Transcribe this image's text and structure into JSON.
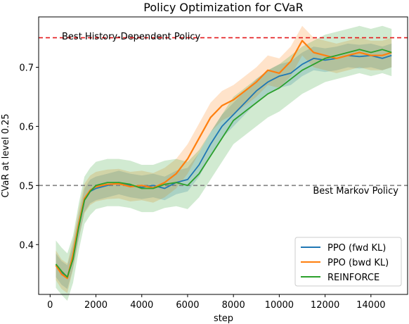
{
  "chart_data": {
    "type": "line",
    "title": "Policy Optimization for CVaR",
    "xlabel": "step",
    "ylabel": "CVaR at level 0.25",
    "xlim": [
      -500,
      15600
    ],
    "ylim": [
      0.3157,
      0.7852
    ],
    "xticks": [
      0,
      2000,
      4000,
      6000,
      8000,
      10000,
      12000,
      14000
    ],
    "yticks": [
      0.4,
      0.5,
      0.6,
      0.7
    ],
    "grid": false,
    "legend_position": "lower-right",
    "reference_lines": [
      {
        "label": "Best History-Dependent Policy",
        "value": 0.75,
        "color": "#e41a1c",
        "style": "dashed",
        "label_position": "left"
      },
      {
        "label": "Best Markov Policy",
        "value": 0.5,
        "color": "#808080",
        "style": "dashed",
        "label_position": "right"
      }
    ],
    "series": [
      {
        "name": "PPO (fwd KL)",
        "color": "#1f77b4",
        "band_width": 0.02,
        "x": [
          250,
          500,
          750,
          1000,
          1250,
          1500,
          1750,
          2000,
          2500,
          3000,
          3500,
          4000,
          4500,
          5000,
          5500,
          6000,
          6500,
          7000,
          7500,
          8000,
          8500,
          9000,
          9500,
          10000,
          10500,
          11000,
          11500,
          12000,
          12500,
          13000,
          13500,
          14000,
          14500,
          14900
        ],
        "y": [
          0.365,
          0.352,
          0.345,
          0.38,
          0.43,
          0.475,
          0.49,
          0.495,
          0.5,
          0.505,
          0.5,
          0.497,
          0.5,
          0.495,
          0.505,
          0.51,
          0.535,
          0.57,
          0.6,
          0.62,
          0.64,
          0.66,
          0.675,
          0.685,
          0.69,
          0.705,
          0.715,
          0.712,
          0.715,
          0.72,
          0.718,
          0.72,
          0.715,
          0.72
        ]
      },
      {
        "name": "PPO (bwd KL)",
        "color": "#ff7f0e",
        "band_width": 0.025,
        "x": [
          250,
          500,
          750,
          1000,
          1250,
          1500,
          1750,
          2000,
          2500,
          3000,
          3500,
          4000,
          4500,
          5000,
          5500,
          6000,
          6500,
          7000,
          7500,
          8000,
          8500,
          9000,
          9500,
          10000,
          10500,
          11000,
          11500,
          12000,
          12500,
          13000,
          13500,
          14000,
          14500,
          14900
        ],
        "y": [
          0.365,
          0.35,
          0.343,
          0.383,
          0.435,
          0.478,
          0.492,
          0.498,
          0.502,
          0.503,
          0.498,
          0.5,
          0.496,
          0.505,
          0.52,
          0.545,
          0.58,
          0.615,
          0.635,
          0.645,
          0.66,
          0.675,
          0.695,
          0.69,
          0.71,
          0.745,
          0.725,
          0.72,
          0.715,
          0.72,
          0.725,
          0.72,
          0.72,
          0.725
        ]
      },
      {
        "name": "REINFORCE",
        "color": "#2ca02c",
        "band_width": 0.04,
        "x": [
          250,
          500,
          750,
          1000,
          1250,
          1500,
          1750,
          2000,
          2500,
          3000,
          3500,
          4000,
          4500,
          5000,
          5500,
          6000,
          6500,
          7000,
          7500,
          8000,
          8500,
          9000,
          9500,
          10000,
          10500,
          11000,
          11500,
          12000,
          12500,
          13000,
          13500,
          14000,
          14500,
          14900
        ],
        "y": [
          0.367,
          0.355,
          0.345,
          0.375,
          0.43,
          0.475,
          0.49,
          0.5,
          0.505,
          0.505,
          0.502,
          0.495,
          0.495,
          0.502,
          0.505,
          0.5,
          0.52,
          0.55,
          0.58,
          0.61,
          0.625,
          0.64,
          0.655,
          0.665,
          0.68,
          0.695,
          0.705,
          0.715,
          0.72,
          0.725,
          0.73,
          0.725,
          0.73,
          0.725
        ]
      }
    ]
  }
}
